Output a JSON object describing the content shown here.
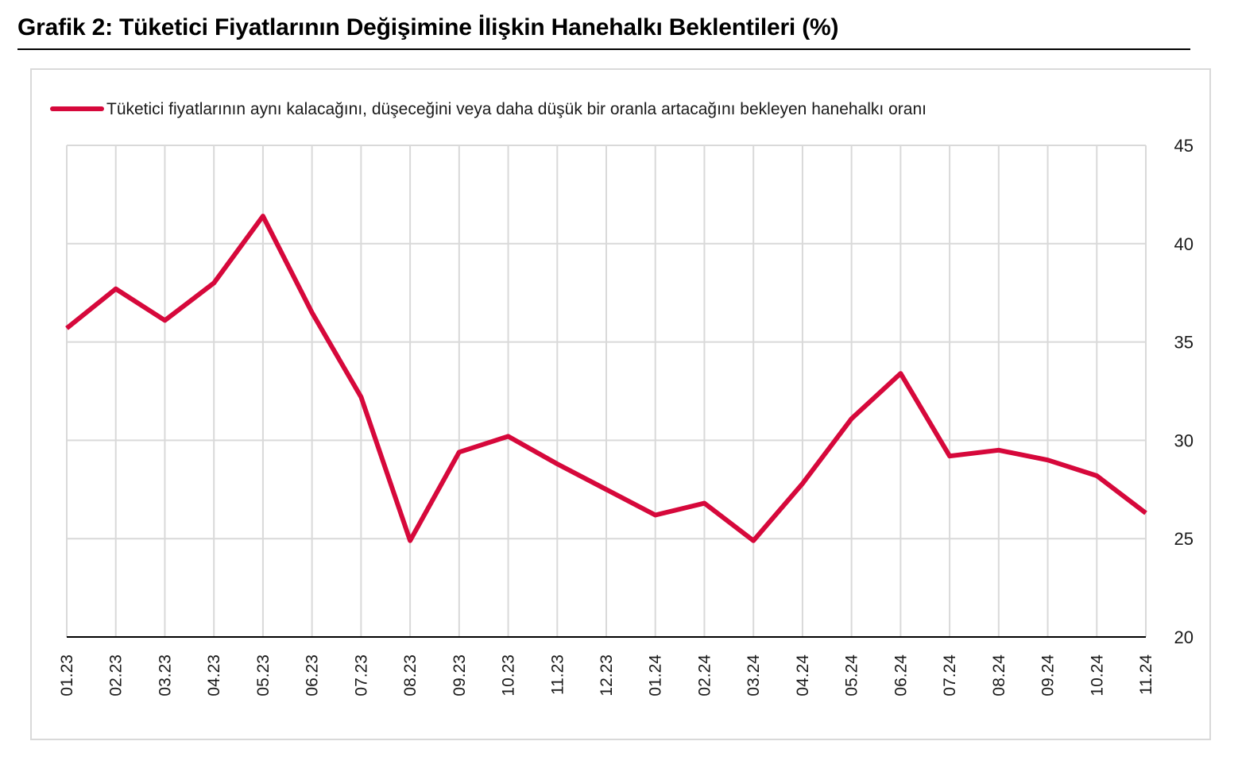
{
  "title": "Grafik 2: Tüketici Fiyatlarının Değişimine İlişkin Hanehalkı Beklentileri (%)",
  "chart_data": {
    "type": "line",
    "categories": [
      "01.23",
      "02.23",
      "03.23",
      "04.23",
      "05.23",
      "06.23",
      "07.23",
      "08.23",
      "09.23",
      "10.23",
      "11.23",
      "12.23",
      "01.24",
      "02.24",
      "03.24",
      "04.24",
      "05.24",
      "06.24",
      "07.24",
      "08.24",
      "09.24",
      "10.24",
      "11.24"
    ],
    "series": [
      {
        "name": "Tüketici fiyatlarının aynı kalacağını, düşeceğini veya daha düşük bir oranla artacağını bekleyen hanehalkı oranı",
        "color": "#d6083b",
        "values": [
          35.7,
          37.7,
          36.1,
          38.0,
          41.4,
          36.5,
          32.2,
          24.9,
          29.4,
          30.2,
          28.8,
          27.5,
          26.2,
          26.8,
          24.9,
          27.8,
          31.1,
          33.4,
          29.2,
          29.5,
          29.0,
          28.2,
          26.3
        ]
      }
    ],
    "yaxis": {
      "min": 20,
      "max": 45,
      "ticks": [
        "20",
        "25",
        "30",
        "35",
        "40",
        "45"
      ],
      "position": "right"
    },
    "grid": true,
    "legend": "top"
  }
}
